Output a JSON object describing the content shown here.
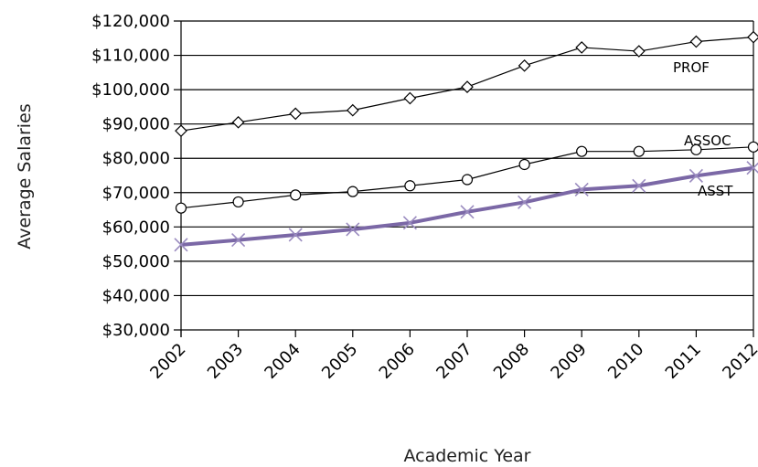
{
  "chart_data": {
    "type": "line",
    "title": "",
    "xlabel": "Academic Year",
    "ylabel": "Average Salaries",
    "x": [
      "2002",
      "2003",
      "2004",
      "2005",
      "2006",
      "2007",
      "2008",
      "2009",
      "2010",
      "2011",
      "2012"
    ],
    "ylim": [
      30000,
      120000
    ],
    "yticks": [
      30000,
      40000,
      50000,
      60000,
      70000,
      80000,
      90000,
      100000,
      110000,
      120000
    ],
    "ytick_labels": [
      "$30,000",
      "$40,000",
      "$50,000",
      "$60,000",
      "$70,000",
      "$80,000",
      "$90,000",
      "$100,000",
      "$110,000",
      "$120,000"
    ],
    "grid": "horizontal",
    "series": [
      {
        "name": "PROF",
        "marker": "diamond",
        "color": "#000000",
        "values": [
          88000,
          90500,
          93000,
          94000,
          97500,
          100800,
          107000,
          112300,
          111200,
          114000,
          115300
        ]
      },
      {
        "name": "ASSOC",
        "marker": "circle",
        "color": "#000000",
        "values": [
          65500,
          67300,
          69300,
          70300,
          72000,
          73800,
          78200,
          82000,
          82000,
          82500,
          83300
        ]
      },
      {
        "name": "ASST",
        "marker": "x",
        "color": "#7b68a6",
        "values": [
          54800,
          56200,
          57700,
          59300,
          61200,
          64400,
          67200,
          70900,
          72000,
          74900,
          77200
        ]
      }
    ]
  }
}
